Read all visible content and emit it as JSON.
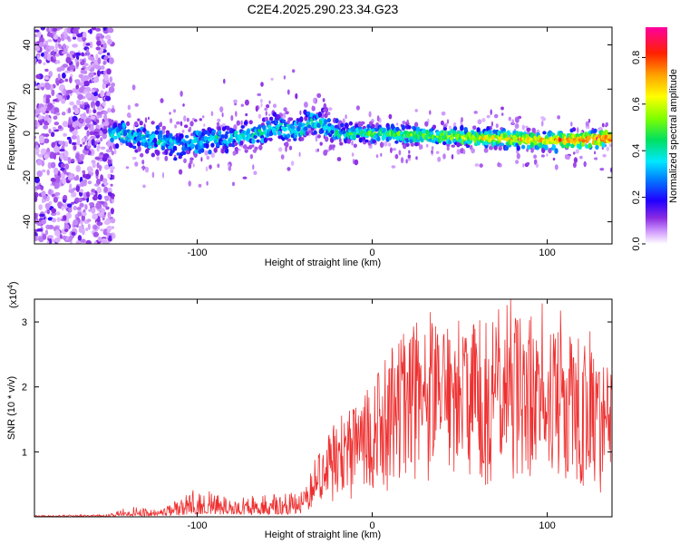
{
  "title": "C2E4.2025.290.23.34.G23",
  "chart_data": [
    {
      "type": "heatmap",
      "xlabel": "Height of straight line (km)",
      "ylabel": "Frequency (Hz)",
      "xlim": [
        -193,
        137
      ],
      "ylim": [
        -50,
        48
      ],
      "xticks": [
        -100,
        0,
        100
      ],
      "xtick_labels": [
        "-100",
        "0",
        "100"
      ],
      "yticks": [
        -40,
        -20,
        0,
        20,
        40
      ],
      "ytick_labels": [
        "-40",
        "-20",
        "0",
        "20",
        "40"
      ],
      "noise_region_x": [
        -193,
        -150
      ],
      "ridge": [
        {
          "x": -150,
          "f": 0
        },
        {
          "x": -130,
          "f": -2
        },
        {
          "x": -110,
          "f": -5
        },
        {
          "x": -95,
          "f": -3
        },
        {
          "x": -80,
          "f": -2
        },
        {
          "x": -65,
          "f": 0
        },
        {
          "x": -55,
          "f": 3
        },
        {
          "x": -45,
          "f": 1
        },
        {
          "x": -32,
          "f": 6
        },
        {
          "x": -28,
          "f": 4
        },
        {
          "x": -20,
          "f": 0
        },
        {
          "x": 0,
          "f": 0
        },
        {
          "x": 30,
          "f": -1
        },
        {
          "x": 60,
          "f": -2
        },
        {
          "x": 90,
          "f": -3
        },
        {
          "x": 120,
          "f": -3
        },
        {
          "x": 137,
          "f": -2
        }
      ],
      "colorbar": {
        "label": "Normalized spectral amplitude",
        "range": [
          0,
          0.93
        ],
        "ticks": [
          0.0,
          0.2,
          0.4,
          0.6,
          0.8
        ],
        "tick_labels": [
          "0.0",
          "0.2",
          "0.4",
          "0.6",
          "0.8"
        ]
      }
    },
    {
      "type": "line",
      "xlabel": "Height of straight line (km)",
      "ylabel": "SNR (10 * v/v)",
      "exponent_label": "(x10",
      "exponent_value": "4",
      "exponent_close": ")",
      "xlim": [
        -193,
        137
      ],
      "ylim": [
        0,
        3.35
      ],
      "xticks": [
        -100,
        0,
        100
      ],
      "xtick_labels": [
        "-100",
        "0",
        "100"
      ],
      "yticks": [
        1,
        2,
        3
      ],
      "ytick_labels": [
        "1",
        "2",
        "3"
      ],
      "color": "#ee3030",
      "envelope": [
        {
          "x": -193,
          "max": 0.02
        },
        {
          "x": -150,
          "max": 0.04
        },
        {
          "x": -140,
          "max": 0.16
        },
        {
          "x": -120,
          "max": 0.12
        },
        {
          "x": -100,
          "max": 0.45
        },
        {
          "x": -80,
          "max": 0.3
        },
        {
          "x": -60,
          "max": 0.35
        },
        {
          "x": -40,
          "max": 0.4
        },
        {
          "x": -30,
          "max": 1.1
        },
        {
          "x": -20,
          "max": 1.5
        },
        {
          "x": 0,
          "max": 2.1
        },
        {
          "x": 20,
          "max": 3.0
        },
        {
          "x": 40,
          "max": 3.0
        },
        {
          "x": 60,
          "max": 3.1
        },
        {
          "x": 80,
          "max": 3.3
        },
        {
          "x": 100,
          "max": 3.1
        },
        {
          "x": 120,
          "max": 2.9
        },
        {
          "x": 137,
          "max": 2.2
        }
      ]
    }
  ]
}
